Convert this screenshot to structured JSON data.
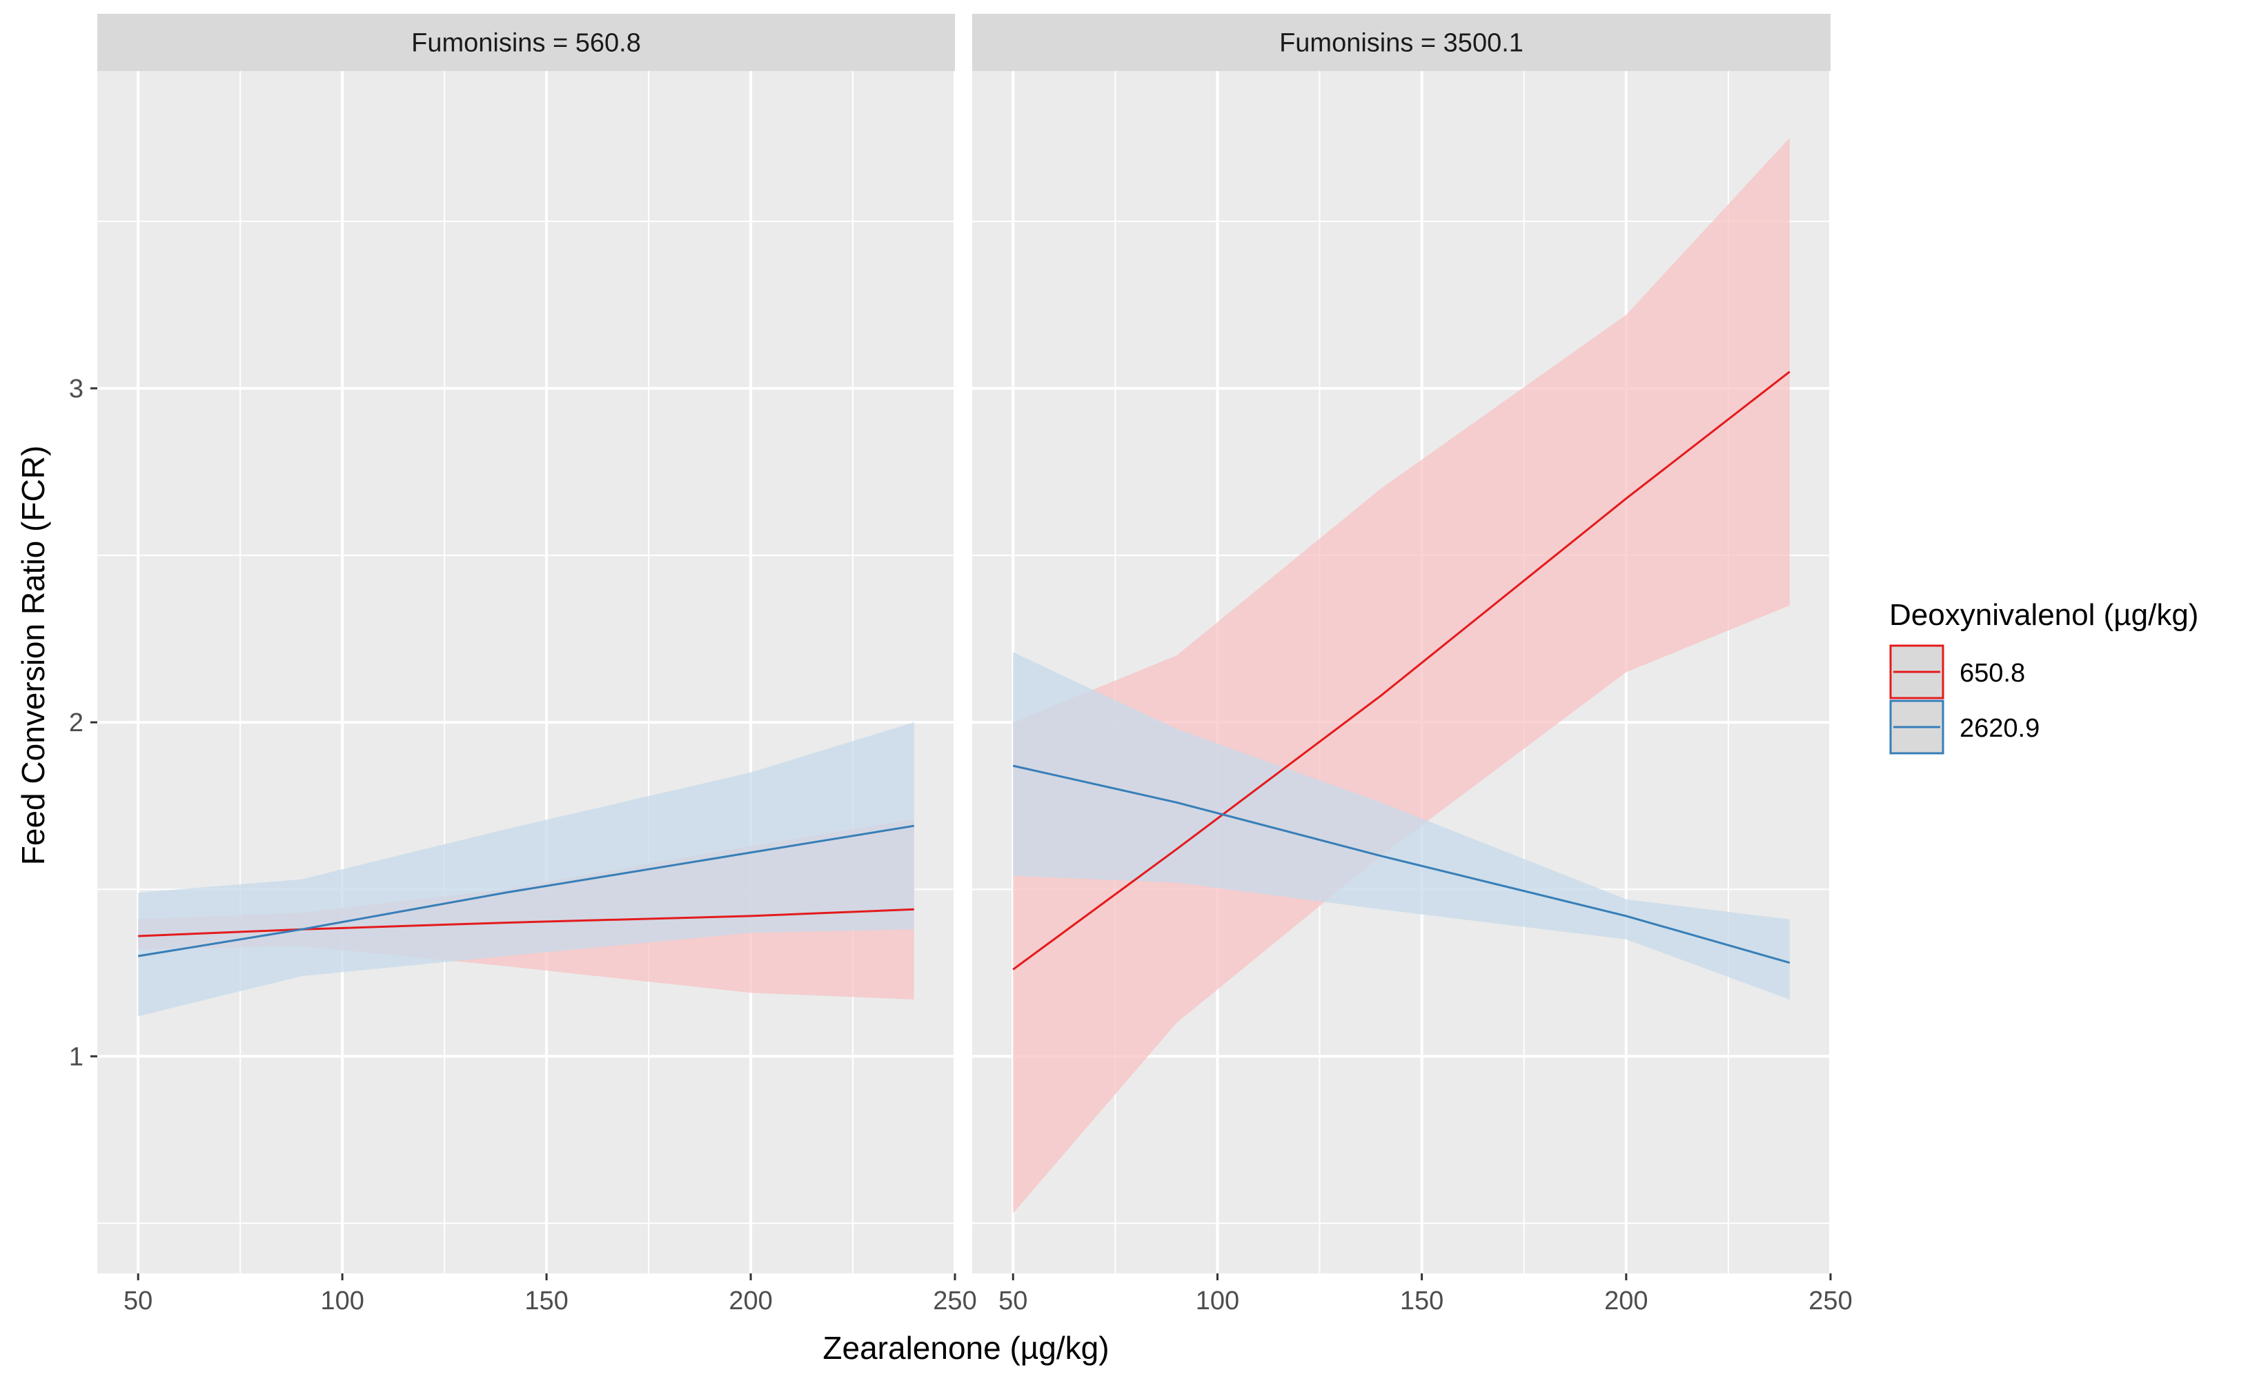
{
  "chart_data": {
    "type": "line",
    "xlabel": "Zearalenone (µg/kg)",
    "ylabel": "Feed Conversion Ratio (FCR)",
    "xlim": [
      40,
      250
    ],
    "ylim": [
      0.35,
      3.95
    ],
    "x_ticks": [
      50,
      100,
      150,
      200,
      250
    ],
    "x_tick_labels": [
      "50",
      "100",
      "150",
      "200",
      "250"
    ],
    "y_ticks": [
      1,
      2,
      3
    ],
    "y_tick_labels": [
      "1",
      "2",
      "3"
    ],
    "grid": true,
    "legend": {
      "title": "Deoxynivalenol (µg/kg)",
      "position": "right",
      "entries": [
        {
          "label": "650.8",
          "color": "#e41a1c",
          "fill": "#f8c3c4"
        },
        {
          "label": "2620.9",
          "color": "#377eb8",
          "fill": "#c6d9ea"
        }
      ]
    },
    "panels": [
      {
        "strip": "Fumonisins = 560.8",
        "series": [
          {
            "name": "650.8",
            "x": [
              50,
              90,
              140,
              200,
              240
            ],
            "y": [
              1.36,
              1.38,
              1.4,
              1.42,
              1.44
            ],
            "lower": [
              1.32,
              1.33,
              1.27,
              1.19,
              1.17
            ],
            "upper": [
              1.41,
              1.43,
              1.5,
              1.63,
              1.71
            ]
          },
          {
            "name": "2620.9",
            "x": [
              50,
              90,
              140,
              200,
              240
            ],
            "y": [
              1.3,
              1.38,
              1.49,
              1.61,
              1.69
            ],
            "lower": [
              1.12,
              1.24,
              1.3,
              1.37,
              1.38
            ],
            "upper": [
              1.49,
              1.53,
              1.68,
              1.85,
              2.0
            ]
          }
        ]
      },
      {
        "strip": "Fumonisins = 3500.1",
        "series": [
          {
            "name": "650.8",
            "x": [
              50,
              90,
              140,
              200,
              240
            ],
            "y": [
              1.26,
              1.62,
              2.08,
              2.67,
              3.05
            ],
            "lower": [
              0.53,
              1.1,
              1.6,
              2.15,
              2.35
            ],
            "upper": [
              2.0,
              2.2,
              2.7,
              3.22,
              3.75
            ]
          },
          {
            "name": "2620.9",
            "x": [
              50,
              90,
              140,
              200,
              240
            ],
            "y": [
              1.87,
              1.76,
              1.6,
              1.42,
              1.28
            ],
            "lower": [
              1.54,
              1.52,
              1.44,
              1.35,
              1.17
            ],
            "upper": [
              2.21,
              1.98,
              1.76,
              1.47,
              1.41
            ]
          }
        ]
      }
    ]
  }
}
